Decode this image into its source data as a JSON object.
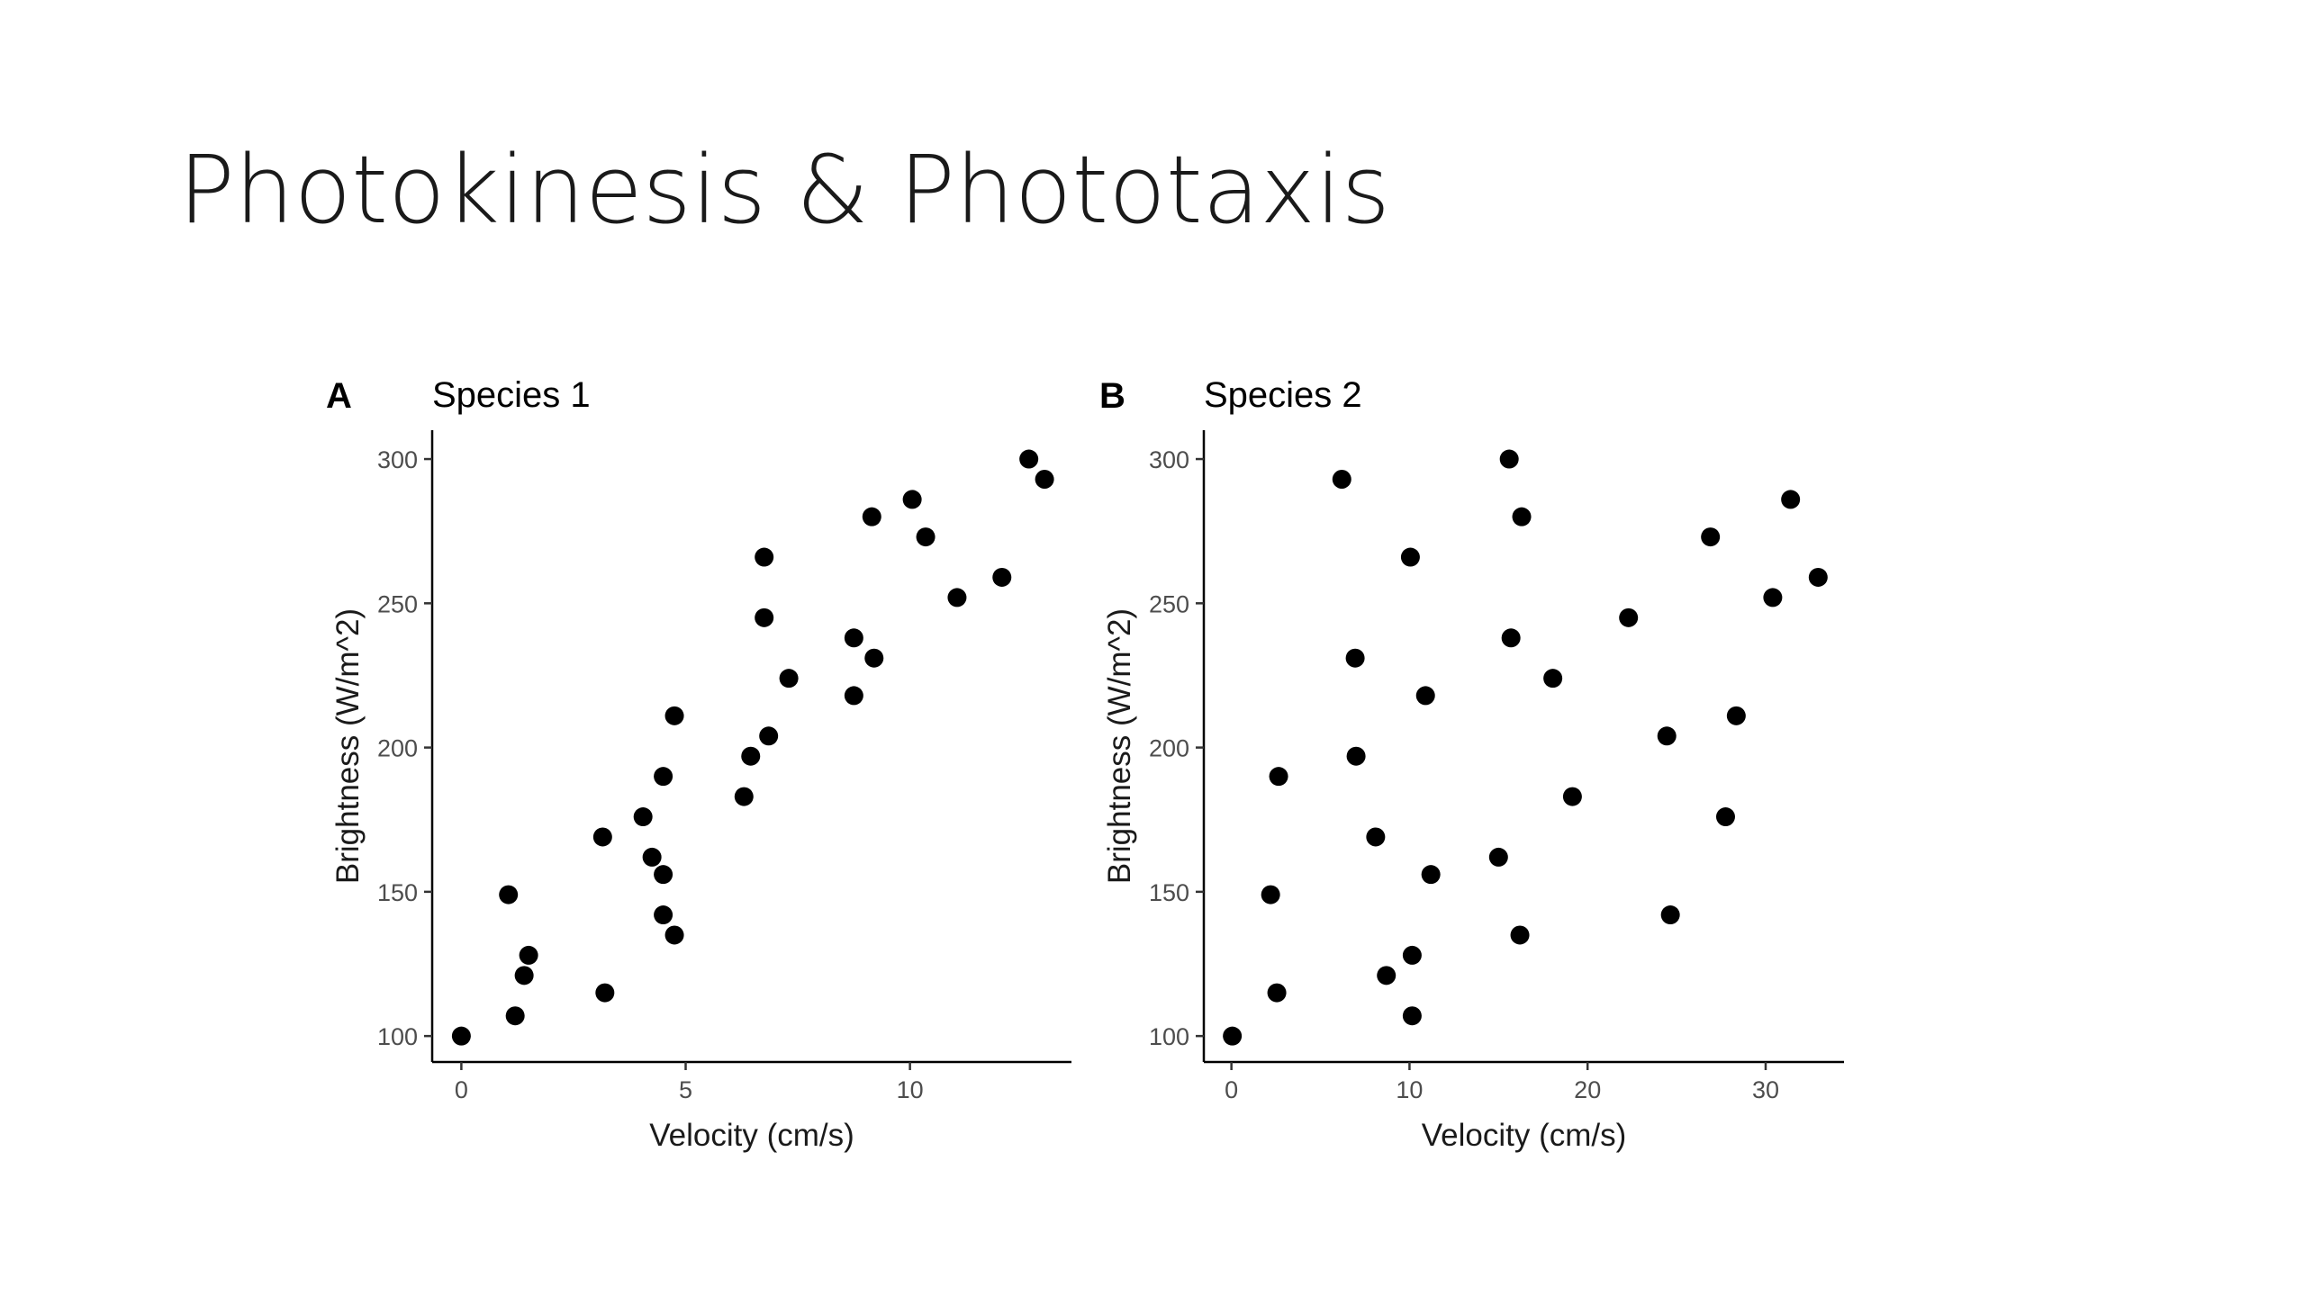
{
  "slide": {
    "title": "Photokinesis & Phototaxis"
  },
  "chart_data": [
    {
      "type": "scatter",
      "panel": "A",
      "title": "Species 1",
      "xlabel": "Velocity (cm/s)",
      "ylabel": "Brightness (W/m^2)",
      "xlim": [
        -0.65,
        13.6
      ],
      "ylim": [
        91,
        310
      ],
      "xticks": [
        0,
        5,
        10
      ],
      "yticks": [
        100,
        150,
        200,
        250,
        300
      ],
      "grid": false,
      "legend": "none",
      "color": "#000000",
      "points": [
        {
          "x": 0.0,
          "y": 100
        },
        {
          "x": 1.2,
          "y": 107
        },
        {
          "x": 1.4,
          "y": 121
        },
        {
          "x": 1.5,
          "y": 128
        },
        {
          "x": 1.05,
          "y": 149
        },
        {
          "x": 3.2,
          "y": 115
        },
        {
          "x": 3.15,
          "y": 169
        },
        {
          "x": 4.05,
          "y": 176
        },
        {
          "x": 4.25,
          "y": 162
        },
        {
          "x": 4.5,
          "y": 156
        },
        {
          "x": 4.5,
          "y": 190
        },
        {
          "x": 4.5,
          "y": 142
        },
        {
          "x": 4.75,
          "y": 135
        },
        {
          "x": 4.75,
          "y": 211
        },
        {
          "x": 6.3,
          "y": 183
        },
        {
          "x": 6.45,
          "y": 197
        },
        {
          "x": 6.85,
          "y": 204
        },
        {
          "x": 6.75,
          "y": 245
        },
        {
          "x": 6.75,
          "y": 266
        },
        {
          "x": 7.3,
          "y": 224
        },
        {
          "x": 8.75,
          "y": 238
        },
        {
          "x": 8.75,
          "y": 218
        },
        {
          "x": 9.2,
          "y": 231
        },
        {
          "x": 9.15,
          "y": 280
        },
        {
          "x": 10.05,
          "y": 286
        },
        {
          "x": 10.35,
          "y": 273
        },
        {
          "x": 11.05,
          "y": 252
        },
        {
          "x": 12.05,
          "y": 259
        },
        {
          "x": 12.65,
          "y": 300
        },
        {
          "x": 13.0,
          "y": 293
        }
      ]
    },
    {
      "type": "scatter",
      "panel": "B",
      "title": "Species 2",
      "xlabel": "Velocity (cm/s)",
      "ylabel": "Brightness (W/m^2)",
      "xlim": [
        -1.55,
        34.4
      ],
      "ylim": [
        91,
        310
      ],
      "xticks": [
        0,
        10,
        20,
        30
      ],
      "yticks": [
        100,
        150,
        200,
        250,
        300
      ],
      "grid": false,
      "legend": "none",
      "color": "#000000",
      "points": [
        {
          "x": 0.05,
          "y": 100
        },
        {
          "x": 2.2,
          "y": 149
        },
        {
          "x": 2.55,
          "y": 115
        },
        {
          "x": 2.65,
          "y": 190
        },
        {
          "x": 6.2,
          "y": 293
        },
        {
          "x": 6.95,
          "y": 231
        },
        {
          "x": 7.0,
          "y": 197
        },
        {
          "x": 8.1,
          "y": 169
        },
        {
          "x": 8.7,
          "y": 121
        },
        {
          "x": 10.05,
          "y": 266
        },
        {
          "x": 10.15,
          "y": 128
        },
        {
          "x": 10.15,
          "y": 107
        },
        {
          "x": 10.9,
          "y": 218
        },
        {
          "x": 11.2,
          "y": 156
        },
        {
          "x": 15.0,
          "y": 162
        },
        {
          "x": 15.6,
          "y": 300
        },
        {
          "x": 15.7,
          "y": 238
        },
        {
          "x": 16.2,
          "y": 135
        },
        {
          "x": 16.3,
          "y": 280
        },
        {
          "x": 18.05,
          "y": 224
        },
        {
          "x": 19.15,
          "y": 183
        },
        {
          "x": 22.3,
          "y": 245
        },
        {
          "x": 24.45,
          "y": 204
        },
        {
          "x": 24.65,
          "y": 142
        },
        {
          "x": 26.9,
          "y": 273
        },
        {
          "x": 27.75,
          "y": 176
        },
        {
          "x": 28.35,
          "y": 211
        },
        {
          "x": 30.4,
          "y": 252
        },
        {
          "x": 31.4,
          "y": 286
        },
        {
          "x": 32.95,
          "y": 259
        }
      ]
    }
  ]
}
